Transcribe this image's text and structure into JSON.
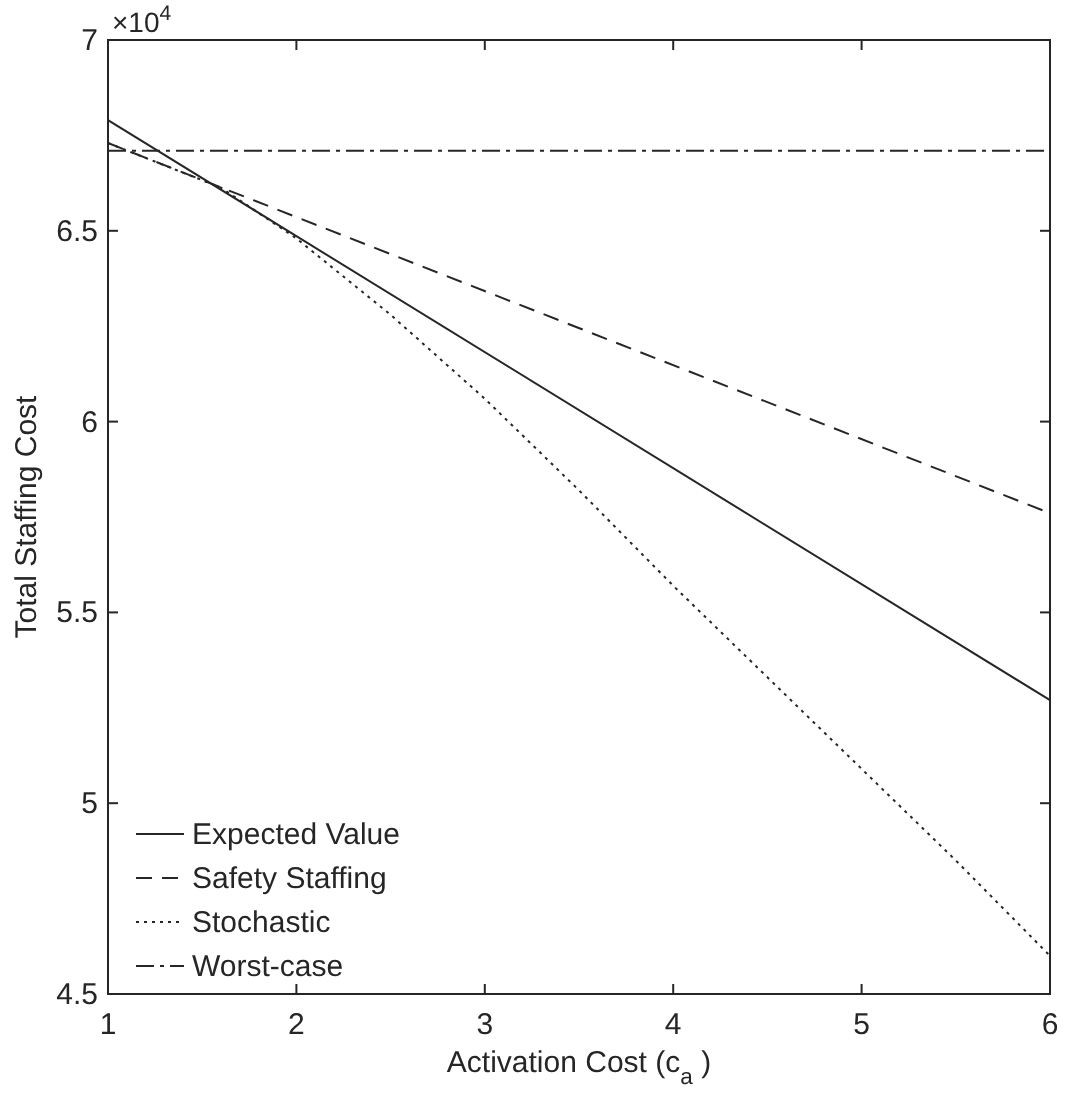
{
  "chart_data": {
    "type": "line",
    "xlabel": "Activation Cost (c$_{a}$)",
    "ylabel": "Total Staffing Cost",
    "annotations": [
      "×10$^{4}$"
    ],
    "xlim": [
      1,
      6
    ],
    "xticks": [
      1,
      2,
      3,
      4,
      5,
      6
    ],
    "ylim": [
      4.5,
      7
    ],
    "yticks": [
      4.5,
      5,
      5.5,
      6,
      6.5,
      7
    ],
    "grid": false,
    "legend": "bottom left",
    "series": [
      {
        "name": "Expected Value",
        "color": "#262626",
        "line_style": "solid",
        "x": [
          1,
          6
        ],
        "values": [
          6.79,
          5.27
        ]
      },
      {
        "name": "Safety Staffing",
        "color": "#262626",
        "line_style": "dashed",
        "x": [
          1,
          6
        ],
        "values": [
          6.73,
          5.76
        ]
      },
      {
        "name": "Stochastic",
        "color": "#262626",
        "line_style": "dotted",
        "x": [
          1,
          1.6,
          2,
          2.5,
          3,
          3.5,
          4,
          4.5,
          5,
          5.5,
          6
        ],
        "values": [
          6.73,
          6.613,
          6.48,
          6.28,
          6.06,
          5.82,
          5.57,
          5.33,
          5.09,
          4.85,
          4.6
        ]
      },
      {
        "name": "Worst-case",
        "color": "#262626",
        "line_style": "dashdot",
        "x": [
          1,
          6
        ],
        "values": [
          6.71,
          6.71
        ]
      }
    ]
  }
}
